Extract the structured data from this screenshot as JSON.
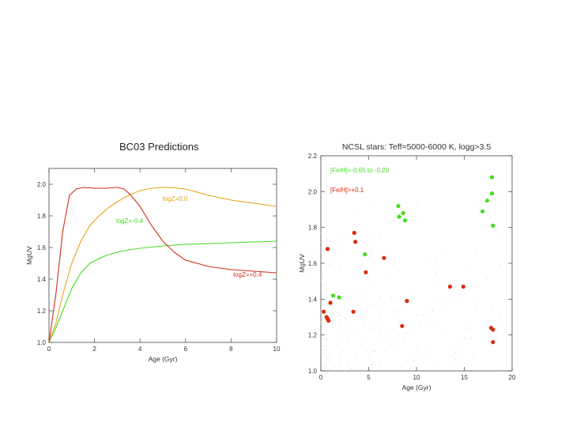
{
  "slide_heading": "BC03 Predictions",
  "chart_data": [
    {
      "type": "line",
      "title": "",
      "xlabel": "Age (Gyr)",
      "ylabel": "MgUV",
      "xlim": [
        0,
        10
      ],
      "ylim": [
        1.0,
        2.1
      ],
      "xticks": [
        "0",
        "2",
        "4",
        "6",
        "8",
        "10"
      ],
      "yticks": [
        "1.0",
        "1.2",
        "1.4",
        "1.6",
        "1.8",
        "2.0"
      ],
      "series": [
        {
          "name": "logZ=-0.4",
          "color": "#44dd22",
          "x": [
            0,
            0.3,
            0.6,
            1.0,
            1.4,
            1.8,
            2.2,
            2.6,
            3.0,
            3.5,
            4,
            5,
            6,
            7,
            8,
            9,
            10
          ],
          "y": [
            1.0,
            1.09,
            1.2,
            1.34,
            1.44,
            1.5,
            1.53,
            1.555,
            1.57,
            1.585,
            1.595,
            1.61,
            1.62,
            1.625,
            1.63,
            1.635,
            1.64
          ]
        },
        {
          "name": "logZ=0.0",
          "color": "#e8a317",
          "x": [
            0,
            0.3,
            0.6,
            1.0,
            1.4,
            1.8,
            2.2,
            2.6,
            3.0,
            3.5,
            4,
            4.5,
            5,
            5.5,
            6,
            7,
            8,
            9,
            10
          ],
          "y": [
            1.0,
            1.12,
            1.3,
            1.5,
            1.64,
            1.74,
            1.8,
            1.85,
            1.89,
            1.93,
            1.96,
            1.975,
            1.98,
            1.978,
            1.97,
            1.93,
            1.9,
            1.88,
            1.86
          ]
        },
        {
          "name": "logZ=+0.4",
          "color": "#d42e1a",
          "x": [
            0,
            0.3,
            0.6,
            0.9,
            1.2,
            1.5,
            2.0,
            2.5,
            3.0,
            3.3,
            3.6,
            4.0,
            4.5,
            5.0,
            5.5,
            6.0,
            7.0,
            8.0,
            9.0,
            10
          ],
          "y": [
            1.0,
            1.3,
            1.7,
            1.93,
            1.97,
            1.98,
            1.975,
            1.975,
            1.98,
            1.97,
            1.93,
            1.86,
            1.74,
            1.64,
            1.57,
            1.52,
            1.48,
            1.46,
            1.45,
            1.44
          ]
        }
      ],
      "annotations": [
        "logZ=0.0",
        "logZ=-0.4",
        "logZ=+0.4"
      ]
    },
    {
      "type": "scatter",
      "title": "NCSL stars: Teff=5000-6000 K, logg>3.5",
      "xlabel": "Age (Gyr)",
      "ylabel": "MgUV",
      "xlim": [
        0,
        20
      ],
      "ylim": [
        1.0,
        2.2
      ],
      "xticks": [
        "0",
        "5",
        "10",
        "15",
        "20"
      ],
      "yticks": [
        "1.0",
        "1.2",
        "1.4",
        "1.6",
        "1.8",
        "2.0",
        "2.2"
      ],
      "legend": [
        "[Fe/H]=-0.65 to -0.20",
        "[Fe/H]>+0.1"
      ],
      "series": [
        {
          "name": "[Fe/H]=-0.65 to -0.20",
          "color": "#44dd22",
          "x": [
            1.3,
            1.9,
            4.6,
            8.1,
            8.2,
            8.6,
            8.8,
            17.4,
            17.9,
            17.9,
            18.0,
            16.9
          ],
          "y": [
            1.42,
            1.41,
            1.65,
            1.92,
            1.86,
            1.88,
            1.84,
            1.95,
            1.99,
            2.08,
            1.81,
            1.89
          ]
        },
        {
          "name": "[Fe/H]>+0.1",
          "color": "#dd2a10",
          "x": [
            0.3,
            0.6,
            0.7,
            0.7,
            0.8,
            1.0,
            3.4,
            3.5,
            3.6,
            4.7,
            6.6,
            8.5,
            9.0,
            13.5,
            14.9,
            17.8,
            18.0,
            18.0
          ],
          "y": [
            1.33,
            1.3,
            1.29,
            1.68,
            1.28,
            1.38,
            1.33,
            1.77,
            1.72,
            1.55,
            1.63,
            1.25,
            1.39,
            1.47,
            1.47,
            1.24,
            1.23,
            1.16
          ]
        }
      ]
    }
  ]
}
